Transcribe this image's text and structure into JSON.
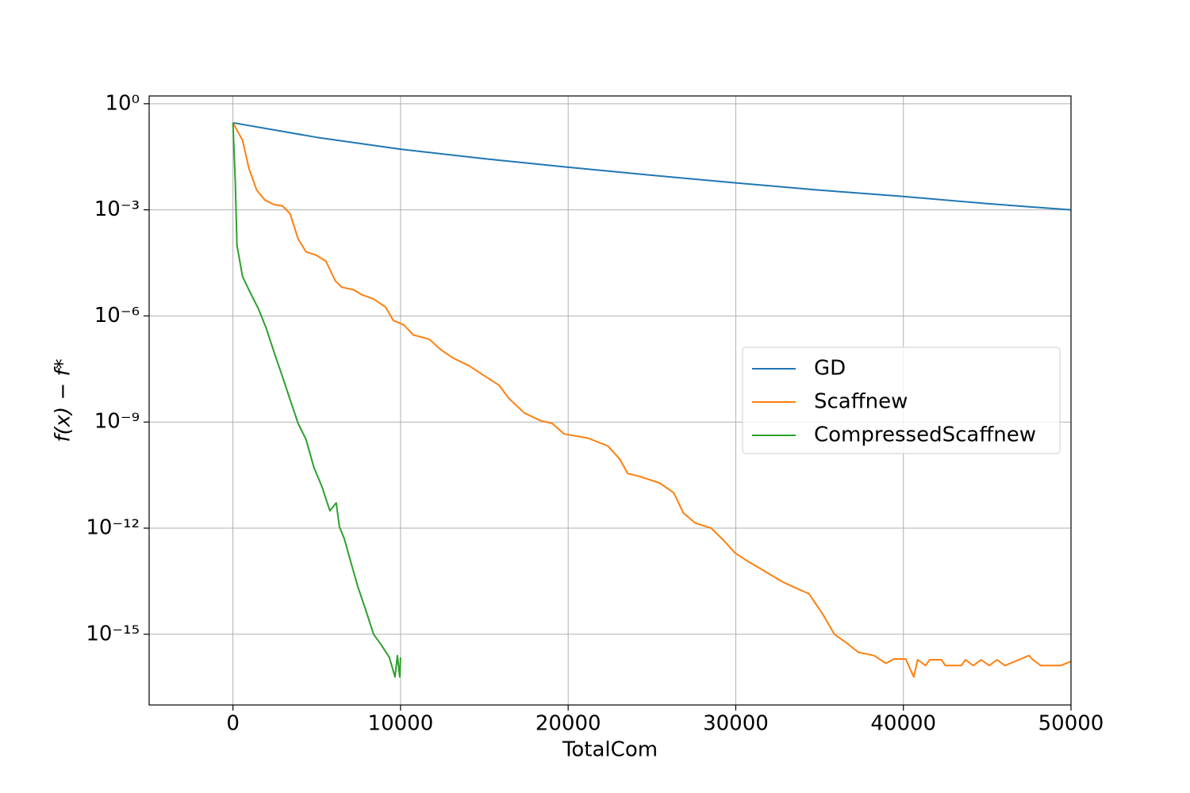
{
  "chart_data": {
    "type": "line",
    "x_label": "TotalCom",
    "y_label": "f(x) − f*",
    "y_log": true,
    "grid": true,
    "legend": "center right",
    "xlim": [
      -5000,
      50000
    ],
    "xticks": [
      0,
      10000,
      20000,
      30000,
      40000,
      50000
    ],
    "ylim": [
      1e-17,
      1.66
    ],
    "yticks": [
      {
        "value": 1,
        "label": "10⁰"
      },
      {
        "value": 0.001,
        "label": "10⁻³"
      },
      {
        "value": 1e-06,
        "label": "10⁻⁶"
      },
      {
        "value": 1e-09,
        "label": "10⁻⁹"
      },
      {
        "value": 1e-12,
        "label": "10⁻¹²"
      },
      {
        "value": 1e-15,
        "label": "10⁻¹⁵"
      }
    ],
    "series": [
      {
        "name": "GD",
        "color": "#1f77b4",
        "x": [
          0,
          5000,
          10000,
          15000,
          20000,
          25000,
          30000,
          35000,
          40000,
          45000,
          50000
        ],
        "values": [
          0.29,
          0.112,
          0.052,
          0.028,
          0.016,
          0.0095,
          0.0058,
          0.0036,
          0.0024,
          0.0015,
          0.001
        ]
      },
      {
        "name": "Scaffnew",
        "color": "#ff7f0e",
        "x": [
          0,
          570,
          950,
          1420,
          1900,
          2460,
          2940,
          3410,
          3890,
          4360,
          4980,
          5550,
          6110,
          6490,
          7200,
          7680,
          8390,
          9100,
          9570,
          10190,
          10760,
          11710,
          12420,
          13130,
          14080,
          15020,
          15880,
          16450,
          17390,
          18340,
          19050,
          19760,
          21180,
          22370,
          23080,
          23550,
          24270,
          25450,
          26300,
          26870,
          27580,
          28530,
          29240,
          29950,
          30660,
          31610,
          32800,
          33510,
          34360,
          35170,
          35880,
          36590,
          37300,
          38250,
          38960,
          39430,
          40140,
          40620,
          40850,
          41330,
          41560,
          42270,
          42510,
          43460,
          43700,
          44170,
          44640,
          45120,
          45590,
          46060,
          47490,
          47730,
          48200,
          49380,
          50000
        ],
        "values": [
          0.29,
          0.093,
          0.015,
          0.0036,
          0.0019,
          0.0014,
          0.0013,
          0.00078,
          0.00015,
          6.5e-05,
          5.2e-05,
          3.5e-05,
          9.8e-06,
          6.5e-06,
          5.5e-06,
          4e-06,
          3e-06,
          1.8e-06,
          7.4e-07,
          5.6e-07,
          2.9e-07,
          2.2e-07,
          1.1e-07,
          6.5e-08,
          3.9e-08,
          2e-08,
          1.1e-08,
          4.7e-09,
          1.8e-09,
          1.1e-09,
          9.1e-10,
          4.6e-10,
          3.5e-10,
          2.1e-10,
          8.9e-11,
          3.5e-11,
          2.9e-11,
          1.9e-11,
          1e-11,
          2.7e-12,
          1.4e-12,
          1e-12,
          4.7e-13,
          2e-13,
          1.2e-13,
          6.5e-14,
          3e-14,
          2.1e-14,
          1.4e-14,
          3.8e-15,
          1e-15,
          5.8e-16,
          3.1e-16,
          2.5e-16,
          1.5e-16,
          2e-16,
          2e-16,
          6.2e-17,
          1.9e-16,
          1.3e-16,
          1.9e-16,
          1.9e-16,
          1.3e-16,
          1.3e-16,
          1.9e-16,
          1.3e-16,
          1.9e-16,
          1.3e-16,
          1.9e-16,
          1.3e-16,
          2.5e-16,
          1.9e-16,
          1.3e-16,
          1.3e-16,
          1.7e-16
        ]
      },
      {
        "name": "CompressedScaffnew",
        "color": "#2ca02c",
        "x": [
          0,
          140,
          240,
          570,
          1040,
          1520,
          1990,
          2460,
          2940,
          3410,
          3890,
          4360,
          4830,
          5310,
          5780,
          6160,
          6350,
          6640,
          6970,
          7440,
          7910,
          8390,
          8860,
          9330,
          9670,
          9810,
          9950,
          10000
        ],
        "values": [
          0.29,
          0.006,
          0.0001,
          1.3e-05,
          4.5e-06,
          1.6e-06,
          4.4e-07,
          9.3e-08,
          2e-08,
          4.3e-09,
          9.1e-10,
          3.2e-10,
          5.2e-11,
          1.5e-11,
          3.1e-12,
          5.2e-12,
          1.1e-12,
          5.1e-13,
          1.4e-13,
          2.3e-14,
          5e-15,
          1e-15,
          4.9e-16,
          2.2e-16,
          6.2e-17,
          2.5e-16,
          6.2e-17,
          2.2e-16
        ]
      }
    ]
  }
}
